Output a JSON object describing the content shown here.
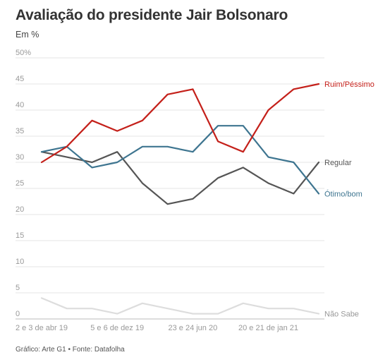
{
  "header": {
    "title": "Avaliação do presidente Jair Bolsonaro",
    "subtitle": "Em %"
  },
  "footer": {
    "source": "Gráfico: Arte G1 • Fonte: Datafolha"
  },
  "chart_data": {
    "type": "line",
    "title": "Avaliação do presidente Jair Bolsonaro",
    "ylabel": "Em %",
    "ylim": [
      0,
      50
    ],
    "yticks": [
      0,
      5,
      10,
      15,
      20,
      25,
      30,
      35,
      40,
      45,
      50
    ],
    "ytick_labels": [
      "0",
      "5",
      "10",
      "15",
      "20",
      "25",
      "30",
      "35",
      "40",
      "45",
      "50%"
    ],
    "x_tick_labels": [
      "2 e 3 de abr 19",
      "5 e 6 de dez 19",
      "23 e 24 jun 20",
      "20 e 21 de jan 21"
    ],
    "x_tick_indices": [
      0,
      3,
      6,
      9
    ],
    "grid": true,
    "legend": "inline-right",
    "series": [
      {
        "name": "Ruim/Péssimo",
        "color": "#c4201a",
        "values": [
          30,
          33,
          38,
          36,
          38,
          43,
          44,
          34,
          32,
          40,
          44,
          45
        ]
      },
      {
        "name": "Regular",
        "color": "#555555",
        "values": [
          32,
          31,
          30,
          32,
          26,
          22,
          23,
          27,
          29,
          26,
          24,
          30
        ]
      },
      {
        "name": "Ótimo/bom",
        "color": "#3e7590",
        "values": [
          32,
          33,
          29,
          30,
          33,
          33,
          32,
          37,
          37,
          31,
          30,
          24
        ]
      },
      {
        "name": "Não Sabe",
        "color": "#dddddd",
        "values": [
          4,
          2,
          2,
          1,
          3,
          2,
          1,
          1,
          3,
          2,
          2,
          1
        ]
      }
    ]
  }
}
